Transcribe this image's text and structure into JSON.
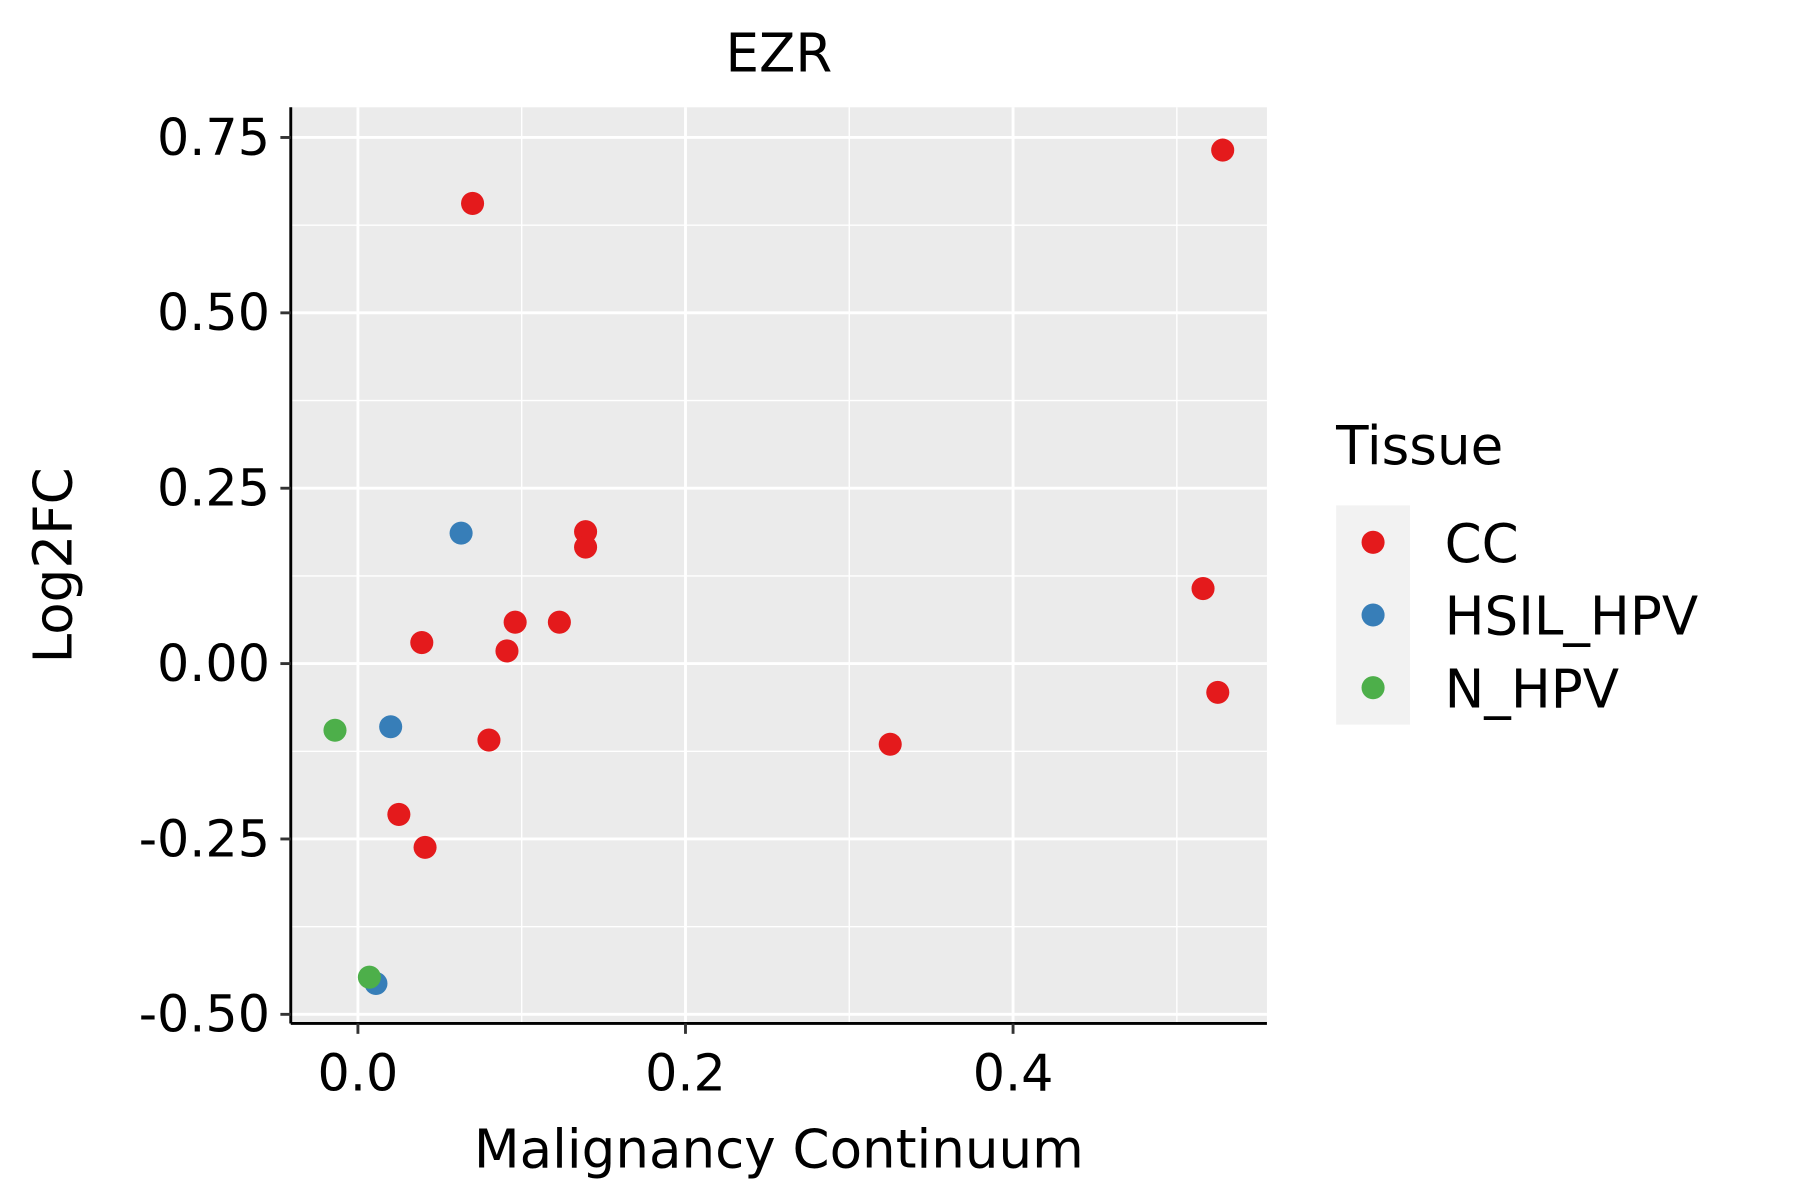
{
  "chart_data": {
    "type": "scatter",
    "title": "EZR",
    "xlabel": "Malignancy Continuum",
    "ylabel": "Log2FC",
    "xlim": [
      -0.041,
      0.555
    ],
    "ylim": [
      -0.513,
      0.793
    ],
    "xticks": [
      0.0,
      0.2,
      0.4
    ],
    "xtick_labels": [
      "0.0",
      "0.2",
      "0.4"
    ],
    "yticks": [
      0.75,
      0.5,
      0.25,
      0.0,
      -0.25,
      -0.5
    ],
    "ytick_labels": [
      "0.75",
      "0.50",
      "0.25",
      "0.00",
      "-0.25",
      "-0.50"
    ],
    "grid": true,
    "legend": {
      "title": "Tissue",
      "placement": "right"
    },
    "series": [
      {
        "name": "CC",
        "color": "#E41A1C",
        "points": [
          [
            0.528,
            0.732
          ],
          [
            0.07,
            0.656
          ],
          [
            0.139,
            0.188
          ],
          [
            0.139,
            0.166
          ],
          [
            0.096,
            0.059
          ],
          [
            0.123,
            0.059
          ],
          [
            0.039,
            0.03
          ],
          [
            0.091,
            0.018
          ],
          [
            0.08,
            -0.109
          ],
          [
            0.516,
            0.107
          ],
          [
            0.525,
            -0.041
          ],
          [
            0.325,
            -0.115
          ],
          [
            0.025,
            -0.215
          ],
          [
            0.041,
            -0.262
          ]
        ]
      },
      {
        "name": "HSIL_HPV",
        "color": "#377EB8",
        "points": [
          [
            0.063,
            0.186
          ],
          [
            0.02,
            -0.09
          ],
          [
            0.011,
            -0.456
          ]
        ]
      },
      {
        "name": "N_HPV",
        "color": "#4DAF4A",
        "points": [
          [
            -0.014,
            -0.095
          ],
          [
            0.007,
            -0.447
          ]
        ]
      }
    ]
  }
}
